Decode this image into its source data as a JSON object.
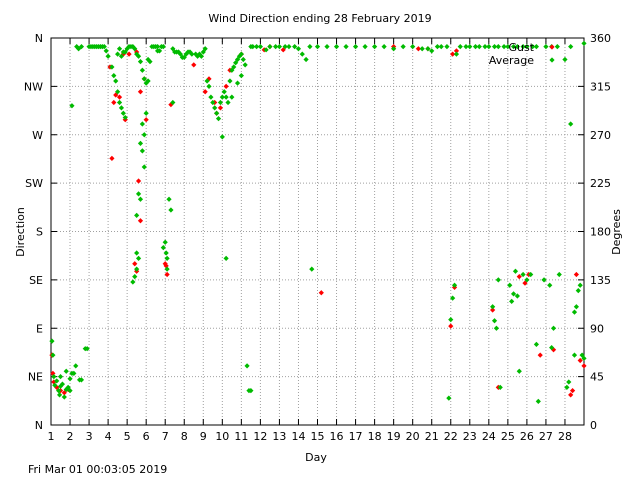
{
  "chart_data": {
    "type": "scatter",
    "title": "Wind Direction ending 28 February 2019",
    "xlabel": "Day",
    "ylabel_left": "Direction",
    "ylabel_right": "Degrees",
    "xlim": [
      1,
      29
    ],
    "ylim": [
      0,
      360
    ],
    "x_ticks": [
      1,
      2,
      3,
      4,
      5,
      6,
      7,
      8,
      9,
      10,
      11,
      12,
      13,
      14,
      15,
      16,
      17,
      18,
      19,
      20,
      21,
      22,
      23,
      24,
      25,
      26,
      27,
      28
    ],
    "y_ticks_left": [
      {
        "value": 0,
        "label": "N"
      },
      {
        "value": 45,
        "label": "NE"
      },
      {
        "value": 90,
        "label": "E"
      },
      {
        "value": 135,
        "label": "SE"
      },
      {
        "value": 180,
        "label": "S"
      },
      {
        "value": 225,
        "label": "SW"
      },
      {
        "value": 270,
        "label": "W"
      },
      {
        "value": 315,
        "label": "NW"
      },
      {
        "value": 360,
        "label": "N"
      }
    ],
    "y_ticks_right": [
      0,
      45,
      90,
      135,
      180,
      225,
      270,
      315,
      360
    ],
    "grid": true,
    "legend_position": "top-right",
    "series": [
      {
        "name": "Gust",
        "color": "#ff0000",
        "points": [
          [
            1.05,
            65
          ],
          [
            1.1,
            48
          ],
          [
            1.15,
            40
          ],
          [
            1.3,
            35
          ],
          [
            1.5,
            32
          ],
          [
            1.7,
            30
          ],
          [
            1.9,
            33
          ],
          [
            4.1,
            333
          ],
          [
            4.3,
            300
          ],
          [
            4.4,
            307
          ],
          [
            4.6,
            305
          ],
          [
            4.9,
            284
          ],
          [
            4.8,
            345
          ],
          [
            4.2,
            248
          ],
          [
            5.1,
            345
          ],
          [
            5.5,
            347
          ],
          [
            5.7,
            310
          ],
          [
            5.9,
            322
          ],
          [
            6.0,
            284
          ],
          [
            5.7,
            190
          ],
          [
            5.6,
            227
          ],
          [
            5.4,
            150
          ],
          [
            5.5,
            143
          ],
          [
            7.05,
            148
          ],
          [
            7.1,
            140
          ],
          [
            7.0,
            150
          ],
          [
            7.3,
            298
          ],
          [
            8.5,
            335
          ],
          [
            9.1,
            310
          ],
          [
            9.3,
            322
          ],
          [
            9.6,
            300
          ],
          [
            9.7,
            290
          ],
          [
            9.9,
            295
          ],
          [
            10.2,
            315
          ],
          [
            10.4,
            330
          ],
          [
            11.0,
            345
          ],
          [
            12.2,
            349
          ],
          [
            12.5,
            352
          ],
          [
            13.2,
            349
          ],
          [
            19.0,
            352
          ],
          [
            20.3,
            350
          ],
          [
            20.8,
            350
          ],
          [
            15.2,
            123
          ],
          [
            22.0,
            92
          ],
          [
            22.1,
            345
          ],
          [
            22.3,
            348
          ],
          [
            22.2,
            128
          ],
          [
            24.2,
            107
          ],
          [
            24.5,
            35
          ],
          [
            25.6,
            138
          ],
          [
            25.9,
            132
          ],
          [
            26.1,
            140
          ],
          [
            26.7,
            65
          ],
          [
            27.4,
            70
          ],
          [
            28.3,
            28
          ],
          [
            28.6,
            140
          ],
          [
            29.0,
            55
          ],
          [
            28.8,
            60
          ],
          [
            29.1,
            50
          ],
          [
            28.4,
            32
          ]
        ]
      },
      {
        "name": "Average",
        "color": "#00bb00",
        "points": [
          [
            1.05,
            78
          ],
          [
            1.1,
            65
          ],
          [
            1.15,
            45
          ],
          [
            1.2,
            37
          ],
          [
            1.3,
            41
          ],
          [
            1.4,
            32
          ],
          [
            1.45,
            28
          ],
          [
            1.5,
            36
          ],
          [
            1.6,
            38
          ],
          [
            1.7,
            26
          ],
          [
            1.8,
            33
          ],
          [
            1.9,
            35
          ],
          [
            2.0,
            32
          ],
          [
            2.1,
            48
          ],
          [
            2.2,
            48
          ],
          [
            2.3,
            55
          ],
          [
            1.5,
            45
          ],
          [
            2.0,
            43
          ],
          [
            1.8,
            50
          ],
          [
            2.5,
            42
          ],
          [
            2.8,
            71
          ],
          [
            2.9,
            71
          ],
          [
            2.6,
            42
          ],
          [
            2.1,
            297
          ],
          [
            2.35,
            352
          ],
          [
            2.45,
            350
          ],
          [
            2.6,
            352
          ],
          [
            3.0,
            352
          ],
          [
            3.1,
            352
          ],
          [
            3.2,
            352
          ],
          [
            3.3,
            352
          ],
          [
            3.4,
            352
          ],
          [
            3.5,
            352
          ],
          [
            3.6,
            352
          ],
          [
            3.7,
            352
          ],
          [
            3.8,
            352
          ],
          [
            3.9,
            348
          ],
          [
            4.0,
            343
          ],
          [
            4.2,
            333
          ],
          [
            4.3,
            325
          ],
          [
            4.4,
            320
          ],
          [
            4.5,
            310
          ],
          [
            4.6,
            300
          ],
          [
            4.7,
            295
          ],
          [
            4.8,
            290
          ],
          [
            4.9,
            286
          ],
          [
            4.5,
            345
          ],
          [
            4.6,
            350
          ],
          [
            4.7,
            343
          ],
          [
            4.8,
            347
          ],
          [
            4.9,
            347
          ],
          [
            5.0,
            350
          ],
          [
            5.1,
            352
          ],
          [
            5.2,
            352
          ],
          [
            5.3,
            352
          ],
          [
            5.4,
            350
          ],
          [
            5.5,
            345
          ],
          [
            5.6,
            343
          ],
          [
            5.7,
            338
          ],
          [
            5.8,
            330
          ],
          [
            5.9,
            322
          ],
          [
            6.0,
            318
          ],
          [
            6.1,
            320
          ],
          [
            5.8,
            280
          ],
          [
            5.9,
            270
          ],
          [
            6.0,
            290
          ],
          [
            5.7,
            262
          ],
          [
            5.8,
            255
          ],
          [
            5.9,
            240
          ],
          [
            5.6,
            215
          ],
          [
            5.5,
            195
          ],
          [
            5.7,
            210
          ],
          [
            5.4,
            138
          ],
          [
            5.5,
            145
          ],
          [
            5.3,
            133
          ],
          [
            5.6,
            155
          ],
          [
            5.5,
            160
          ],
          [
            6.1,
            340
          ],
          [
            6.2,
            338
          ],
          [
            6.3,
            352
          ],
          [
            6.4,
            352
          ],
          [
            6.5,
            352
          ],
          [
            6.6,
            352
          ],
          [
            6.7,
            348
          ],
          [
            6.8,
            352
          ],
          [
            6.9,
            352
          ],
          [
            6.6,
            348
          ],
          [
            6.9,
            165
          ],
          [
            7.0,
            170
          ],
          [
            7.05,
            160
          ],
          [
            7.1,
            155
          ],
          [
            7.2,
            210
          ],
          [
            7.3,
            200
          ],
          [
            7.4,
            300
          ],
          [
            7.1,
            145
          ],
          [
            7.4,
            350
          ],
          [
            7.5,
            347
          ],
          [
            7.6,
            347
          ],
          [
            7.7,
            347
          ],
          [
            7.8,
            345
          ],
          [
            7.9,
            342
          ],
          [
            8.0,
            342
          ],
          [
            8.1,
            345
          ],
          [
            8.2,
            347
          ],
          [
            8.3,
            347
          ],
          [
            8.4,
            345
          ],
          [
            8.6,
            345
          ],
          [
            8.8,
            345
          ],
          [
            9.0,
            347
          ],
          [
            9.1,
            350
          ],
          [
            8.7,
            343
          ],
          [
            8.9,
            343
          ],
          [
            9.2,
            320
          ],
          [
            9.3,
            315
          ],
          [
            9.4,
            305
          ],
          [
            9.5,
            300
          ],
          [
            9.6,
            295
          ],
          [
            9.7,
            290
          ],
          [
            9.8,
            285
          ],
          [
            9.9,
            300
          ],
          [
            10.0,
            305
          ],
          [
            10.1,
            310
          ],
          [
            10.2,
            305
          ],
          [
            10.3,
            300
          ],
          [
            10.4,
            320
          ],
          [
            10.5,
            330
          ],
          [
            10.6,
            333
          ],
          [
            10.7,
            337
          ],
          [
            10.8,
            340
          ],
          [
            10.9,
            343
          ],
          [
            11.0,
            345
          ],
          [
            11.1,
            340
          ],
          [
            11.2,
            335
          ],
          [
            10.5,
            305
          ],
          [
            10.8,
            318
          ],
          [
            11.0,
            325
          ],
          [
            10.0,
            268
          ],
          [
            10.2,
            155
          ],
          [
            11.3,
            55
          ],
          [
            11.5,
            32
          ],
          [
            11.4,
            32
          ],
          [
            11.5,
            352
          ],
          [
            11.6,
            352
          ],
          [
            11.8,
            352
          ],
          [
            12.0,
            352
          ],
          [
            12.3,
            349
          ],
          [
            12.5,
            352
          ],
          [
            12.8,
            352
          ],
          [
            13.0,
            352
          ],
          [
            13.3,
            352
          ],
          [
            13.5,
            352
          ],
          [
            13.8,
            352
          ],
          [
            14.0,
            350
          ],
          [
            14.2,
            345
          ],
          [
            14.4,
            340
          ],
          [
            14.6,
            352
          ],
          [
            14.7,
            145
          ],
          [
            15.0,
            352
          ],
          [
            15.5,
            352
          ],
          [
            16.0,
            352
          ],
          [
            16.5,
            352
          ],
          [
            17.0,
            352
          ],
          [
            17.5,
            352
          ],
          [
            18.0,
            352
          ],
          [
            18.5,
            352
          ],
          [
            19.0,
            350
          ],
          [
            19.5,
            352
          ],
          [
            20.0,
            352
          ],
          [
            20.5,
            350
          ],
          [
            20.8,
            350
          ],
          [
            21.0,
            348
          ],
          [
            21.3,
            352
          ],
          [
            21.5,
            352
          ],
          [
            21.8,
            352
          ],
          [
            22.0,
            98
          ],
          [
            22.1,
            118
          ],
          [
            22.2,
            130
          ],
          [
            21.9,
            25
          ],
          [
            22.3,
            345
          ],
          [
            22.5,
            352
          ],
          [
            22.8,
            352
          ],
          [
            23.0,
            352
          ],
          [
            23.3,
            352
          ],
          [
            23.5,
            352
          ],
          [
            23.8,
            352
          ],
          [
            24.0,
            352
          ],
          [
            24.3,
            352
          ],
          [
            24.5,
            352
          ],
          [
            24.8,
            352
          ],
          [
            25.0,
            352
          ],
          [
            25.3,
            352
          ],
          [
            25.5,
            352
          ],
          [
            25.8,
            352
          ],
          [
            26.0,
            352
          ],
          [
            26.3,
            352
          ],
          [
            26.5,
            352
          ],
          [
            27.0,
            352
          ],
          [
            27.3,
            352
          ],
          [
            27.6,
            352
          ],
          [
            28.0,
            340
          ],
          [
            28.3,
            352
          ],
          [
            24.2,
            110
          ],
          [
            24.3,
            97
          ],
          [
            24.5,
            135
          ],
          [
            24.6,
            35
          ],
          [
            24.4,
            90
          ],
          [
            25.1,
            130
          ],
          [
            25.2,
            115
          ],
          [
            25.3,
            122
          ],
          [
            25.4,
            143
          ],
          [
            25.5,
            120
          ],
          [
            25.6,
            50
          ],
          [
            25.8,
            140
          ],
          [
            26.0,
            135
          ],
          [
            26.2,
            140
          ],
          [
            26.5,
            75
          ],
          [
            26.6,
            22
          ],
          [
            26.9,
            135
          ],
          [
            27.2,
            130
          ],
          [
            27.3,
            72
          ],
          [
            27.4,
            90
          ],
          [
            27.7,
            140
          ],
          [
            28.1,
            35
          ],
          [
            28.2,
            40
          ],
          [
            28.3,
            280
          ],
          [
            28.5,
            105
          ],
          [
            28.6,
            110
          ],
          [
            28.7,
            125
          ],
          [
            28.8,
            130
          ],
          [
            28.9,
            65
          ],
          [
            29.0,
            62
          ],
          [
            29.05,
            48
          ],
          [
            29.1,
            52
          ],
          [
            29.2,
            70
          ],
          [
            29.3,
            78
          ],
          [
            28.5,
            65
          ],
          [
            29.0,
            355
          ],
          [
            29.2,
            360
          ]
        ]
      }
    ]
  },
  "footer": {
    "timestamp": "Fri Mar 01 00:03:05 2019"
  }
}
